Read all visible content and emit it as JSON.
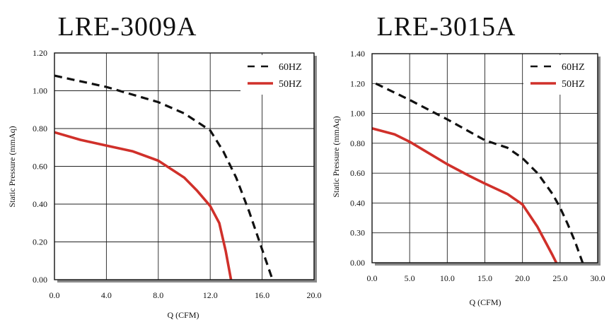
{
  "chart_data": [
    {
      "type": "line",
      "title": "LRE-3009A",
      "xlabel": "Q (CFM)",
      "ylabel": "Static Pressure (mmAq)",
      "x_ticks": [
        "0.0",
        "4.0",
        "8.0",
        "12.0",
        "16.0",
        "20.0"
      ],
      "y_ticks": [
        "0.00",
        "0.20",
        "0.40",
        "0.60",
        "0.80",
        "1.00",
        "1.20"
      ],
      "xlim": [
        0,
        20
      ],
      "ylim": [
        0,
        1.2
      ],
      "grid": true,
      "legend": "top-right",
      "series": [
        {
          "name": "60HZ",
          "color": "#111111",
          "dash": true,
          "x": [
            0,
            2,
            4,
            6,
            8,
            10,
            12,
            13,
            14,
            15,
            16,
            16.8
          ],
          "y": [
            1.08,
            1.05,
            1.02,
            0.98,
            0.94,
            0.88,
            0.79,
            0.68,
            0.54,
            0.36,
            0.16,
            0.0
          ]
        },
        {
          "name": "50HZ",
          "color": "#d0302a",
          "dash": false,
          "x": [
            0,
            2,
            4,
            6,
            8,
            10,
            11,
            12,
            12.7,
            13.2,
            13.6
          ],
          "y": [
            0.78,
            0.74,
            0.71,
            0.68,
            0.63,
            0.54,
            0.47,
            0.39,
            0.3,
            0.15,
            0.0
          ]
        }
      ]
    },
    {
      "type": "line",
      "title": "LRE-3015A",
      "xlabel": "Q (CFM)",
      "ylabel": "Static Pressure (mmAq)",
      "x_ticks": [
        "0.0",
        "5.0",
        "10.0",
        "15.0",
        "20.0",
        "25.0",
        "30.0"
      ],
      "y_ticks": [
        "0.00",
        "0.30",
        "0.40",
        "0.60",
        "0.80",
        "1.00",
        "1.20",
        "1.40"
      ],
      "xlim": [
        0,
        30
      ],
      "ylim": [
        0,
        1.4
      ],
      "grid": true,
      "legend": "top-right",
      "series": [
        {
          "name": "60HZ",
          "color": "#111111",
          "dash": true,
          "x": [
            0.5,
            5,
            10,
            15,
            18,
            20,
            22,
            24,
            25,
            26,
            27,
            28
          ],
          "y": [
            1.2,
            1.09,
            0.96,
            0.82,
            0.77,
            0.7,
            0.6,
            0.46,
            0.37,
            0.26,
            0.14,
            0.0
          ]
        },
        {
          "name": "50HZ",
          "color": "#d0302a",
          "dash": false,
          "x": [
            0,
            3,
            5,
            8,
            10,
            13,
            15,
            18,
            20,
            22,
            24,
            24.5
          ],
          "y": [
            0.9,
            0.86,
            0.81,
            0.72,
            0.66,
            0.58,
            0.53,
            0.46,
            0.39,
            0.24,
            0.05,
            0.0
          ]
        }
      ]
    }
  ]
}
